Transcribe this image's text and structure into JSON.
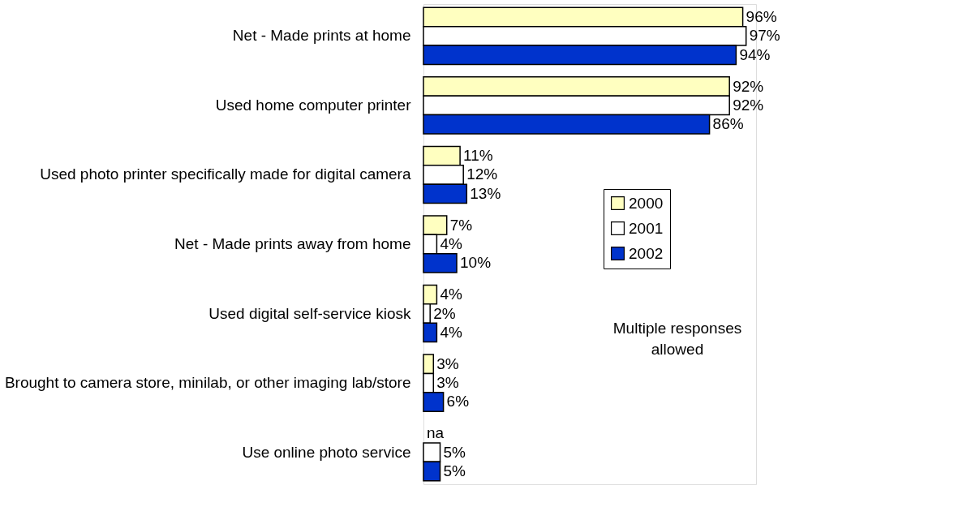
{
  "chart_data": {
    "type": "bar",
    "orientation": "horizontal",
    "categories": [
      "Net - Made prints at home",
      "Used home computer printer",
      "Used photo printer specifically made for digital camera",
      "Net - Made prints away from home",
      "Used digital self-service kiosk",
      "Brought to camera store, minilab, or other imaging lab/store",
      "Use online photo service"
    ],
    "series": [
      {
        "name": "2000",
        "color": "#ffffc0",
        "values": [
          96,
          92,
          11,
          7,
          4,
          3,
          null
        ],
        "value_labels": [
          "96%",
          "92%",
          "11%",
          "7%",
          "4%",
          "3%",
          "na"
        ]
      },
      {
        "name": "2001",
        "color": "#ffffff",
        "values": [
          97,
          92,
          12,
          4,
          2,
          3,
          5
        ],
        "value_labels": [
          "97%",
          "92%",
          "12%",
          "4%",
          "2%",
          "3%",
          "5%"
        ]
      },
      {
        "name": "2002",
        "color": "#0033cc",
        "values": [
          94,
          86,
          13,
          10,
          4,
          6,
          5
        ],
        "value_labels": [
          "94%",
          "86%",
          "13%",
          "10%",
          "4%",
          "6%",
          "5%"
        ]
      }
    ],
    "xlim": [
      0,
      100
    ],
    "legend": "right",
    "annotations": [
      "Multiple responses allowed"
    ]
  }
}
